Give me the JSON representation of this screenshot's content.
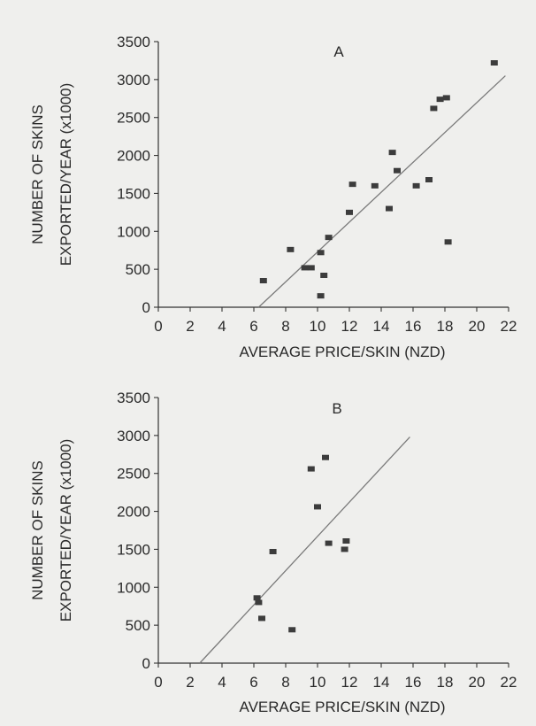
{
  "chart_data": [
    {
      "type": "scatter",
      "panel_label": "A",
      "xlabel": "AVERAGE PRICE/SKIN (NZD)",
      "ylabel": [
        "NUMBER OF SKINS",
        "EXPORTED/YEAR (x1000)"
      ],
      "xlim": [
        0,
        22
      ],
      "ylim": [
        0,
        3500
      ],
      "xticks": [
        0,
        2,
        4,
        6,
        8,
        10,
        12,
        14,
        16,
        18,
        20,
        22
      ],
      "yticks": [
        0,
        500,
        1000,
        1500,
        2000,
        2500,
        3000,
        3500
      ],
      "grid": false,
      "series": [
        {
          "points": [
            [
              6.6,
              350
            ],
            [
              8.3,
              760
            ],
            [
              9.2,
              520
            ],
            [
              9.6,
              520
            ],
            [
              10.2,
              720
            ],
            [
              10.2,
              150
            ],
            [
              10.4,
              420
            ],
            [
              10.7,
              920
            ],
            [
              12.0,
              1250
            ],
            [
              12.2,
              1620
            ],
            [
              13.6,
              1600
            ],
            [
              14.5,
              1300
            ],
            [
              14.7,
              2040
            ],
            [
              15.0,
              1800
            ],
            [
              16.2,
              1600
            ],
            [
              17.0,
              1680
            ],
            [
              17.3,
              2620
            ],
            [
              17.7,
              2740
            ],
            [
              18.1,
              2760
            ],
            [
              18.2,
              860
            ],
            [
              21.1,
              3220
            ]
          ]
        }
      ],
      "trendline": {
        "x": [
          6.3,
          21.8
        ],
        "y": [
          0,
          3050
        ]
      }
    },
    {
      "type": "scatter",
      "panel_label": "B",
      "xlabel": "AVERAGE PRICE/SKIN (NZD)",
      "ylabel": [
        "NUMBER OF SKINS",
        "EXPORTED/YEAR (x1000)"
      ],
      "xlim": [
        0,
        22
      ],
      "ylim": [
        0,
        3500
      ],
      "xticks": [
        0,
        2,
        4,
        6,
        8,
        10,
        12,
        14,
        16,
        18,
        20,
        22
      ],
      "yticks": [
        0,
        500,
        1000,
        1500,
        2000,
        2500,
        3000,
        3500
      ],
      "grid": false,
      "series": [
        {
          "points": [
            [
              6.2,
              860
            ],
            [
              6.3,
              800
            ],
            [
              6.5,
              590
            ],
            [
              7.2,
              1470
            ],
            [
              8.4,
              440
            ],
            [
              9.6,
              2560
            ],
            [
              10.0,
              2060
            ],
            [
              10.5,
              2710
            ],
            [
              10.7,
              1580
            ],
            [
              11.7,
              1500
            ],
            [
              11.8,
              1610
            ]
          ]
        }
      ],
      "trendline": {
        "x": [
          2.6,
          15.8
        ],
        "y": [
          0,
          2980
        ]
      }
    }
  ]
}
